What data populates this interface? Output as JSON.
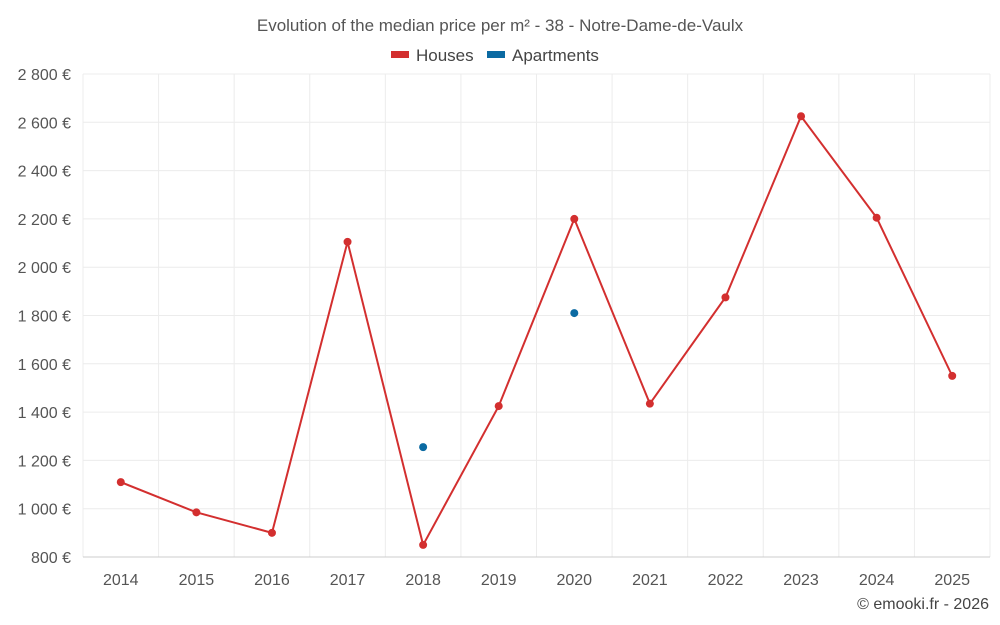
{
  "chart_data": {
    "type": "line",
    "title": "Evolution of the median price per m² - 38 - Notre-Dame-de-Vaulx",
    "categories": [
      "2014",
      "2015",
      "2016",
      "2017",
      "2018",
      "2019",
      "2020",
      "2021",
      "2022",
      "2023",
      "2024",
      "2025"
    ],
    "series": [
      {
        "name": "Houses",
        "color": "#d32f2f",
        "values": [
          1110,
          985,
          900,
          2105,
          850,
          1425,
          2200,
          1435,
          1875,
          2625,
          2205,
          1550
        ]
      },
      {
        "name": "Apartments",
        "color": "#0b6aa2",
        "values": [
          null,
          null,
          null,
          null,
          1255,
          null,
          1810,
          null,
          null,
          null,
          null,
          null
        ]
      }
    ],
    "ylim": [
      800,
      2800
    ],
    "yticks": [
      800,
      1000,
      1200,
      1400,
      1600,
      1800,
      2000,
      2200,
      2400,
      2600,
      2800
    ],
    "ytick_labels": [
      "800 €",
      "1 000 €",
      "1 200 €",
      "1 400 €",
      "1 600 €",
      "1 800 €",
      "2 000 €",
      "2 200 €",
      "2 400 €",
      "2 600 €",
      "2 800 €"
    ],
    "grid": true,
    "legend_position": "top-center",
    "credit": "© emooki.fr - 2026"
  }
}
